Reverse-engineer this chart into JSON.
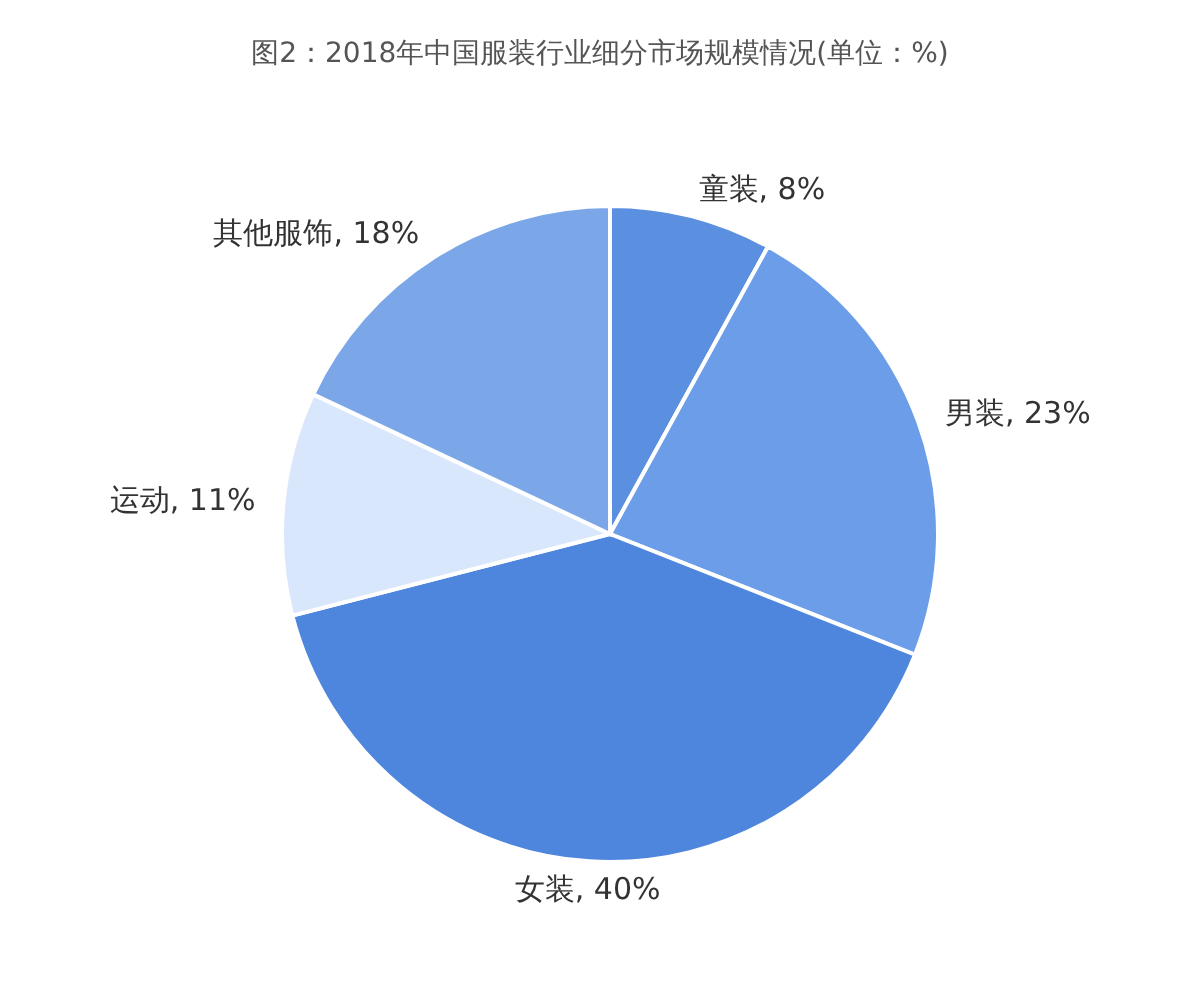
{
  "chart_data": {
    "type": "pie",
    "title": "图2：2018年中国服装行业细分市场规模情况(单位：%)",
    "categories": [
      "童装",
      "男装",
      "女装",
      "运动",
      "其他服饰"
    ],
    "values": [
      8,
      23,
      40,
      11,
      18
    ],
    "value_labels": [
      "8%",
      "23%",
      "40%",
      "11%",
      "18%"
    ],
    "colors": [
      "#5b8fe0",
      "#6c9de8",
      "#4f86dd",
      "#d8e7fb",
      "#7ba7e9"
    ],
    "legend": false
  }
}
